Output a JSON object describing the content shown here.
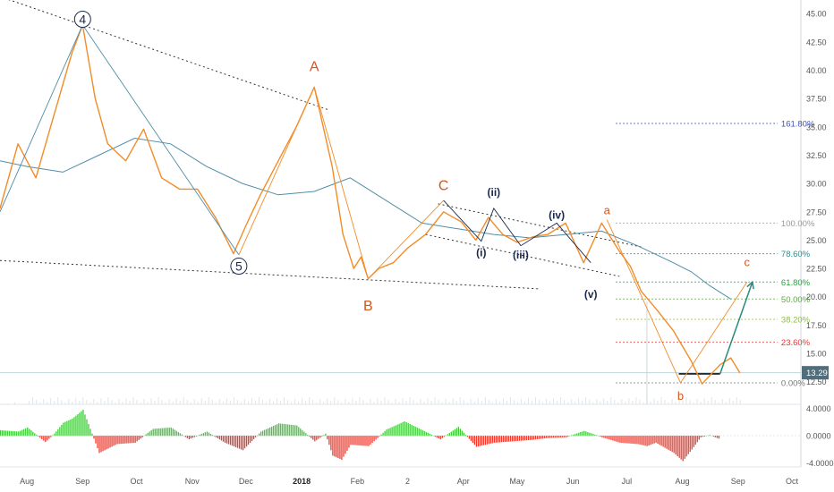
{
  "chart_data": {
    "type": "line",
    "title": "",
    "price_axis": {
      "ylim": [
        10.5,
        46.2
      ],
      "ticks": [
        "45.00",
        "42.50",
        "40.00",
        "37.50",
        "35.00",
        "32.50",
        "30.00",
        "27.50",
        "25.00",
        "22.50",
        "20.00",
        "17.50",
        "15.00",
        "12.50"
      ],
      "tick_values": [
        45.0,
        42.5,
        40.0,
        37.5,
        35.0,
        32.5,
        30.0,
        27.5,
        25.0,
        22.5,
        20.0,
        17.5,
        15.0,
        12.5
      ],
      "last_price_label": "13.29",
      "last_price": 13.29
    },
    "oscillator_axis": {
      "ylim": [
        -4.6,
        4.6
      ],
      "ticks": [
        "4.0000",
        "0.0000",
        "-4.0000"
      ],
      "tick_values": [
        4.0,
        0.0,
        -4.0
      ]
    },
    "time_axis": {
      "ticks": [
        "Aug",
        "Sep",
        "Oct",
        "Nov",
        "Dec",
        "2018",
        "Feb",
        "2",
        "Apr",
        "May",
        "Jun",
        "Jul",
        "Aug",
        "Sep",
        "Oct"
      ],
      "bold_tick": "2018",
      "tick_day_index": [
        0,
        31,
        61,
        92,
        122,
        153,
        184,
        212,
        243,
        273,
        304,
        334,
        365,
        396,
        426
      ],
      "xlim_days": [
        -15,
        431
      ]
    },
    "price_series": {
      "day_index": [
        -15,
        -5,
        5,
        15,
        25,
        31,
        38,
        45,
        55,
        65,
        75,
        85,
        95,
        105,
        115,
        122,
        130,
        140,
        150,
        160,
        170,
        176,
        182,
        186,
        190,
        196,
        204,
        212,
        222,
        232,
        242,
        250,
        257,
        265,
        273,
        282,
        290,
        300,
        310,
        320,
        330,
        336,
        342,
        350,
        360,
        370,
        376,
        380,
        386,
        392,
        397
      ],
      "price": [
        27.8,
        33.5,
        30.5,
        36.0,
        41.5,
        44.0,
        37.5,
        33.5,
        32.0,
        34.8,
        30.5,
        29.5,
        29.5,
        27.0,
        23.8,
        26.3,
        29.0,
        32.0,
        35.0,
        38.5,
        31.5,
        25.5,
        22.5,
        23.5,
        21.6,
        22.5,
        23.0,
        24.3,
        25.5,
        27.5,
        26.6,
        25.0,
        27.0,
        25.5,
        24.8,
        25.3,
        25.5,
        26.5,
        23.0,
        26.5,
        24.0,
        22.7,
        20.5,
        19.0,
        17.0,
        14.3,
        12.3,
        13.0,
        14.0,
        14.6,
        13.29
      ]
    },
    "moving_average": {
      "day_index": [
        -15,
        0,
        20,
        40,
        60,
        80,
        100,
        120,
        140,
        160,
        180,
        200,
        220,
        240,
        260,
        280,
        300,
        320,
        340,
        360,
        370,
        380,
        392
      ],
      "value": [
        32.0,
        31.5,
        31.0,
        32.5,
        34.0,
        33.5,
        31.5,
        30.0,
        29.0,
        29.3,
        30.5,
        28.5,
        26.5,
        26.0,
        25.5,
        25.2,
        25.5,
        25.8,
        24.5,
        23.0,
        22.2,
        21.0,
        19.8
      ]
    },
    "elliott_wave_labels": [
      {
        "label": "4",
        "day_index": 31,
        "price": 44.5,
        "style": "circled"
      },
      {
        "label": "5",
        "day_index": 118,
        "price": 22.7,
        "style": "circled"
      },
      {
        "label": "A",
        "day_index": 160,
        "price": 40.3,
        "style": "orange"
      },
      {
        "label": "B",
        "day_index": 190,
        "price": 19.2,
        "style": "orange"
      },
      {
        "label": "C",
        "day_index": 232,
        "price": 29.8,
        "style": "orange"
      },
      {
        "label": "(i)",
        "day_index": 253,
        "price": 23.9,
        "style": "navy"
      },
      {
        "label": "(ii)",
        "day_index": 260,
        "price": 29.2,
        "style": "navy"
      },
      {
        "label": "(iii)",
        "day_index": 275,
        "price": 23.7,
        "style": "navy"
      },
      {
        "label": "(iv)",
        "day_index": 295,
        "price": 27.2,
        "style": "navy"
      },
      {
        "label": "(v)",
        "day_index": 314,
        "price": 20.2,
        "style": "navy"
      },
      {
        "label": "a",
        "day_index": 323,
        "price": 27.6,
        "style": "orange-small"
      },
      {
        "label": "b",
        "day_index": 364,
        "price": 11.2,
        "style": "orange-small"
      },
      {
        "label": "c",
        "day_index": 401,
        "price": 23.0,
        "style": "orange-small"
      }
    ],
    "fibonacci_levels": [
      {
        "label": "161.80%",
        "price": 35.3,
        "color": "#3f51b5"
      },
      {
        "label": "100.00%",
        "price": 26.5,
        "color": "#999999"
      },
      {
        "label": "78.60%",
        "price": 23.8,
        "color": "#2e8b8b"
      },
      {
        "label": "61.80%",
        "price": 21.3,
        "color": "#27a33f"
      },
      {
        "label": "50.00%",
        "price": 19.8,
        "color": "#5aaa3f"
      },
      {
        "label": "38.20%",
        "price": 18.0,
        "color": "#8bbf3f"
      },
      {
        "label": "23.60%",
        "price": 16.0,
        "color": "#e53935"
      },
      {
        "label": "0.00%",
        "price": 12.4,
        "color": "#777777"
      }
    ],
    "oscillator": {
      "day_index": [
        -15,
        -5,
        0,
        10,
        15,
        20,
        25,
        31,
        35,
        40,
        50,
        60,
        70,
        80,
        90,
        100,
        110,
        120,
        130,
        140,
        150,
        160,
        166,
        170,
        175,
        180,
        190,
        200,
        210,
        220,
        230,
        240,
        250,
        260,
        270,
        280,
        290,
        300,
        310,
        320,
        330,
        340,
        345,
        350,
        360,
        365,
        370,
        375,
        380,
        385
      ],
      "value": [
        0.8,
        0.6,
        1.2,
        -0.9,
        0.3,
        1.9,
        2.5,
        3.8,
        1.0,
        -2.5,
        -1.2,
        -1.0,
        1.0,
        1.2,
        -0.5,
        0.6,
        -1.0,
        -2.1,
        0.6,
        1.8,
        1.5,
        -0.8,
        0.3,
        -2.9,
        -3.5,
        -1.3,
        -1.5,
        0.9,
        2.1,
        0.8,
        -0.5,
        1.3,
        -1.6,
        -1.0,
        -0.8,
        -0.6,
        -0.3,
        -0.2,
        0.7,
        -0.2,
        -1.0,
        -1.2,
        -1.5,
        -1.0,
        -2.5,
        -3.7,
        -2.0,
        -0.2,
        0.1,
        -0.4
      ]
    },
    "colors": {
      "price_line": "#f28c28",
      "moving_average": "#4f8ea8",
      "wave_labels_orange": "#d0581c",
      "wave_labels_navy": "#1b2a4a",
      "trendline": "#333333",
      "forecast_arrow": "#2a8a7e",
      "oscillator_positive": "#3ecb37",
      "oscillator_negative": "#f23a2f",
      "last_price_tag": "#4f6d7a"
    }
  }
}
